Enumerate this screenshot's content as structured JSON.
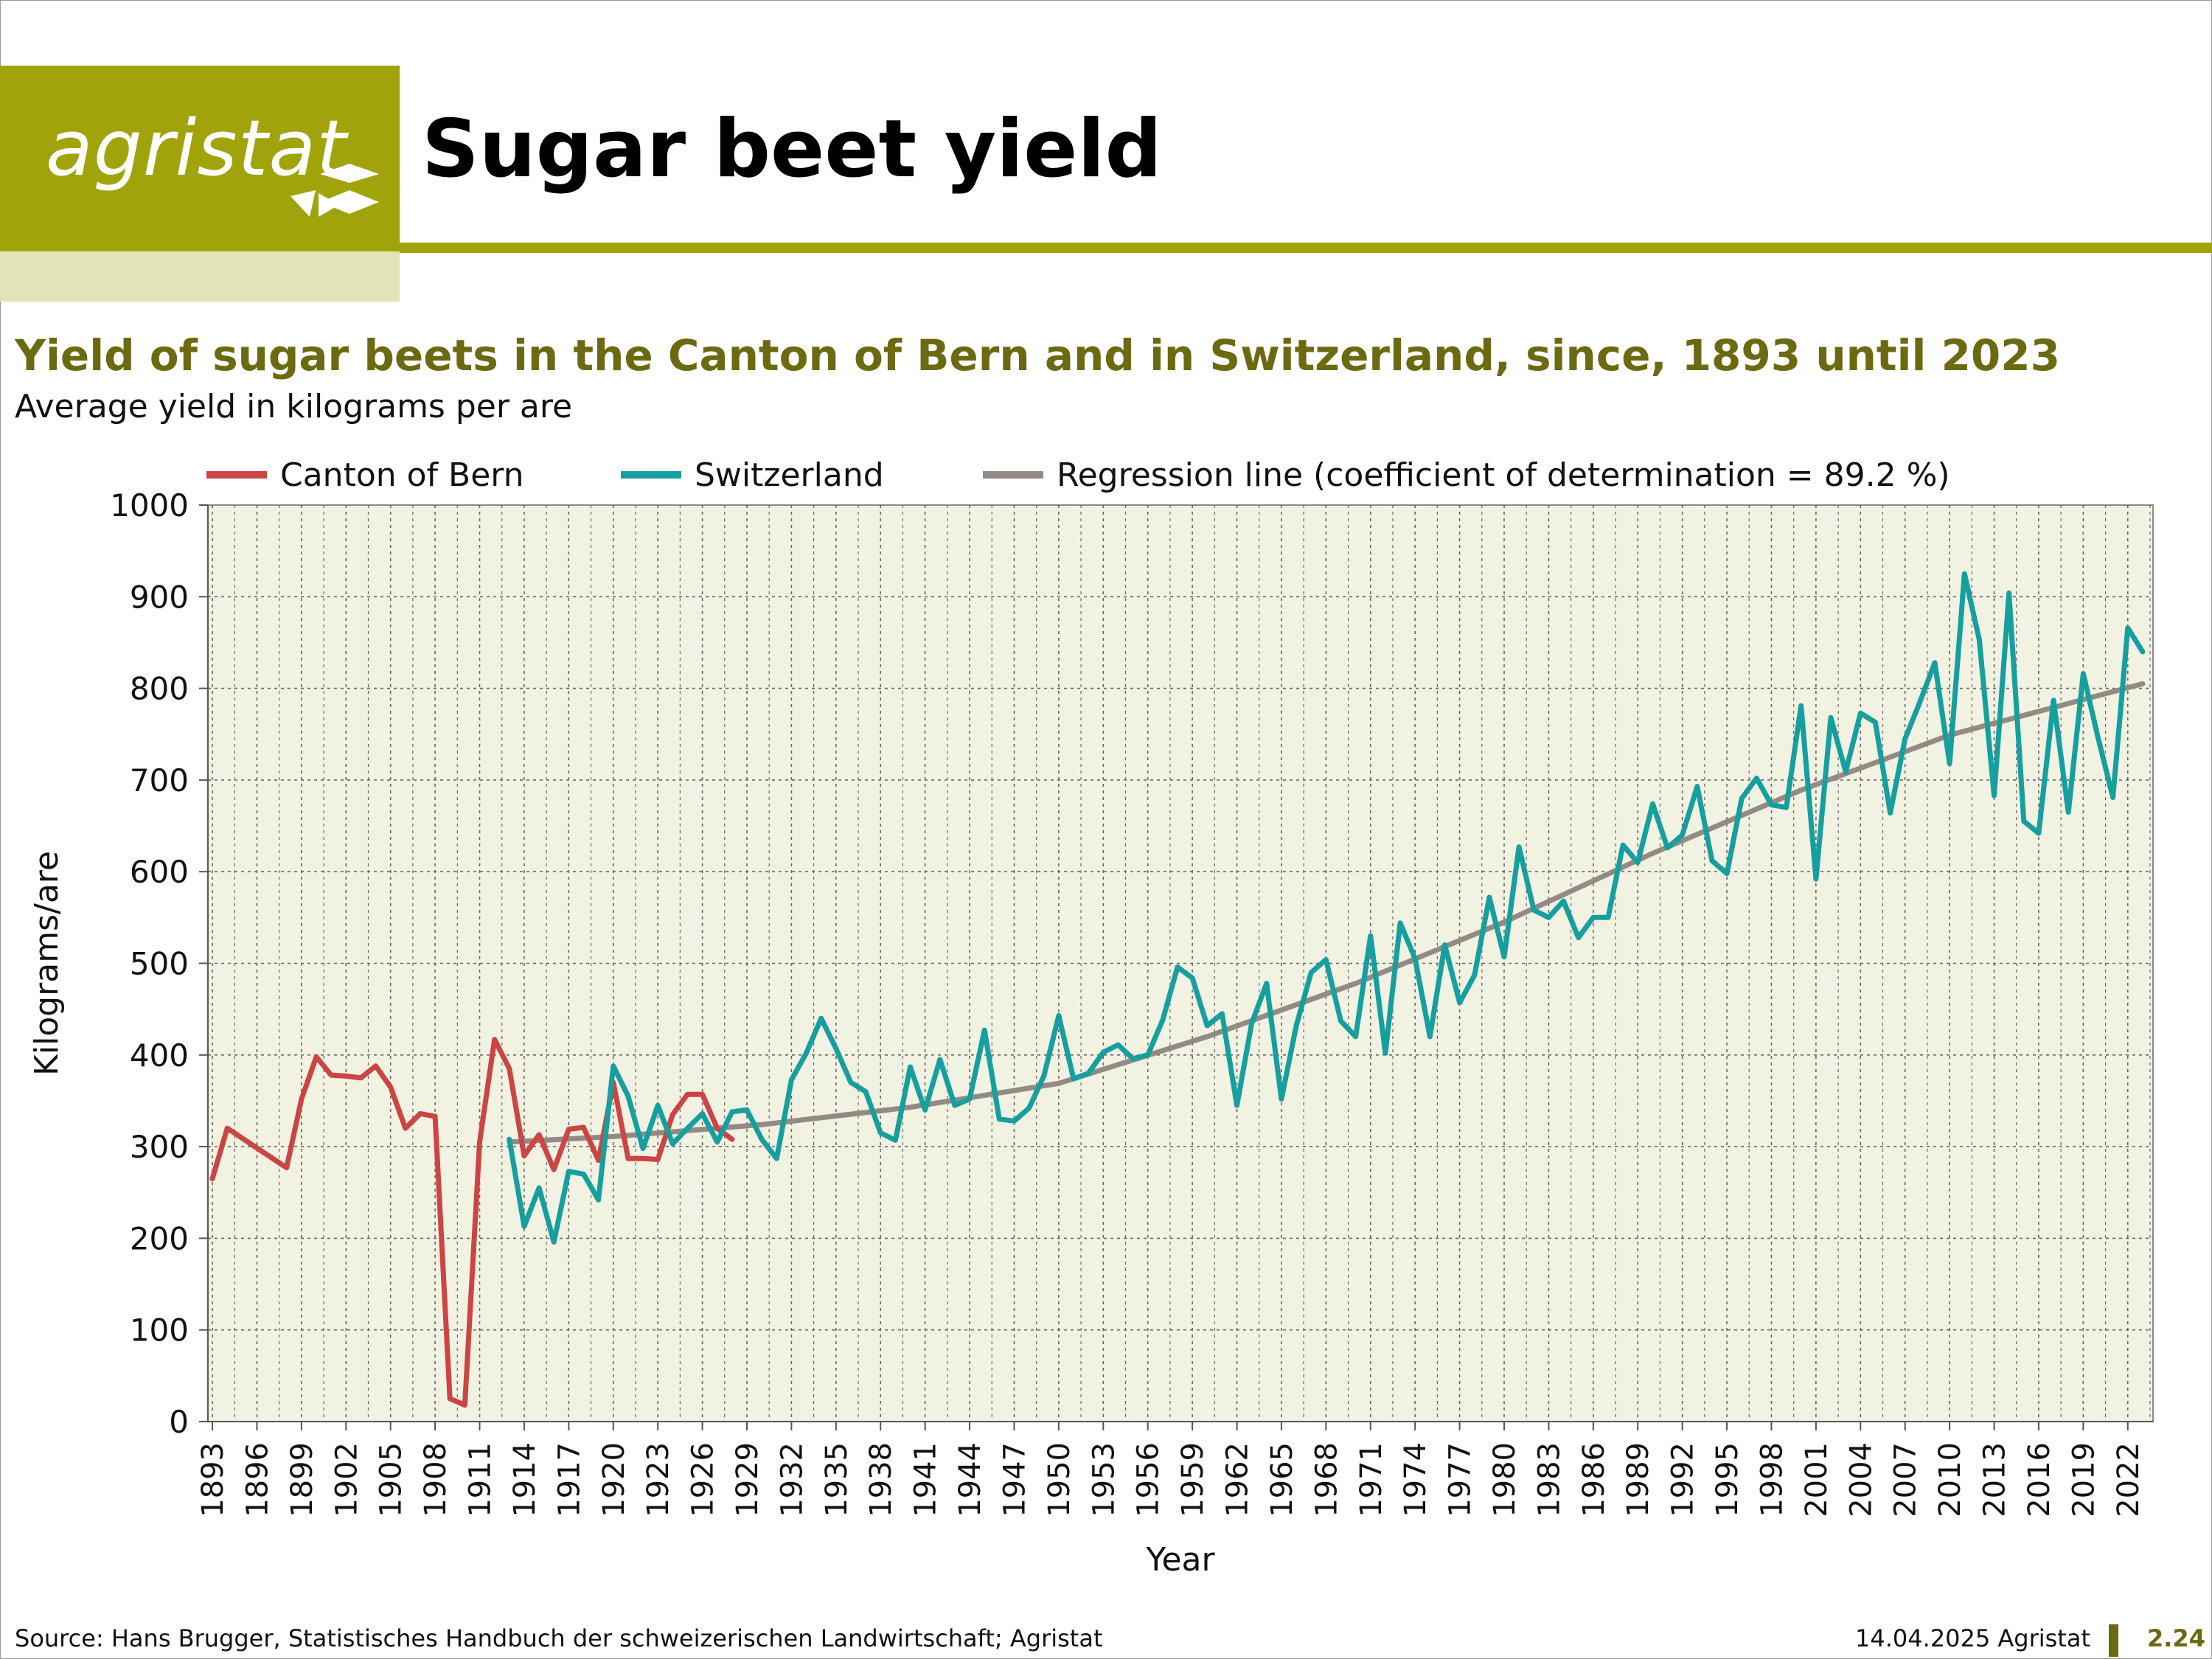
{
  "header": {
    "logo_text": "agristat",
    "page_title": "Sugar beet yield"
  },
  "colors": {
    "brand": "#a0a40a",
    "brand_light": "#e2e4b8",
    "title_olive": "#6b6a10",
    "plot_bg": "#f2f2e2",
    "bern": "#cc4444",
    "switzerland": "#169f9f",
    "regression": "#948a85"
  },
  "chart_data": {
    "type": "line",
    "title": "Yield of sugar beets in the Canton of Bern and in Switzerland, since, 1893 until 2023",
    "subtitle": "Average yield in kilograms per are",
    "xlabel": "Year",
    "ylabel": "Kilograms/are",
    "xlim": [
      1893,
      2023
    ],
    "ylim": [
      0,
      1000
    ],
    "yticks": [
      0,
      100,
      200,
      300,
      400,
      500,
      600,
      700,
      800,
      900,
      1000
    ],
    "xticks": [
      1893,
      1896,
      1899,
      1902,
      1905,
      1908,
      1911,
      1914,
      1917,
      1920,
      1923,
      1926,
      1929,
      1932,
      1935,
      1938,
      1941,
      1944,
      1947,
      1950,
      1953,
      1956,
      1959,
      1962,
      1965,
      1968,
      1971,
      1974,
      1977,
      1980,
      1983,
      1986,
      1989,
      1992,
      1995,
      1998,
      2001,
      2004,
      2007,
      2010,
      2013,
      2016,
      2019,
      2022
    ],
    "grid": true,
    "legend_position": "top",
    "series": [
      {
        "name": "Canton of Bern",
        "x": [
          1893,
          1894,
          1898,
          1899,
          1900,
          1901,
          1902,
          1903,
          1904,
          1905,
          1906,
          1907,
          1908,
          1909,
          1910,
          1911,
          1912,
          1913,
          1914,
          1915,
          1916,
          1917,
          1918,
          1919,
          1920,
          1921,
          1922,
          1923,
          1924,
          1925,
          1926,
          1927,
          1928
        ],
        "values": [
          265,
          320,
          277,
          352,
          398,
          378,
          377,
          375,
          388,
          365,
          320,
          336,
          333,
          25,
          18,
          305,
          417,
          385,
          290,
          313,
          275,
          319,
          321,
          285,
          370,
          287,
          287,
          286,
          335,
          357,
          357,
          320,
          308
        ]
      },
      {
        "name": "Switzerland",
        "x": [
          1913,
          1914,
          1915,
          1916,
          1917,
          1918,
          1919,
          1920,
          1921,
          1922,
          1923,
          1924,
          1925,
          1926,
          1927,
          1928,
          1929,
          1930,
          1931,
          1932,
          1933,
          1934,
          1935,
          1936,
          1937,
          1938,
          1939,
          1940,
          1941,
          1942,
          1943,
          1944,
          1945,
          1946,
          1947,
          1948,
          1949,
          1950,
          1951,
          1952,
          1953,
          1954,
          1955,
          1956,
          1957,
          1958,
          1959,
          1960,
          1961,
          1962,
          1963,
          1964,
          1965,
          1966,
          1967,
          1968,
          1969,
          1970,
          1971,
          1972,
          1973,
          1974,
          1975,
          1976,
          1977,
          1978,
          1979,
          1980,
          1981,
          1982,
          1983,
          1984,
          1985,
          1986,
          1987,
          1988,
          1989,
          1990,
          1991,
          1992,
          1993,
          1994,
          1995,
          1996,
          1997,
          1998,
          1999,
          2000,
          2001,
          2002,
          2003,
          2004,
          2005,
          2006,
          2007,
          2008,
          2009,
          2010,
          2011,
          2012,
          2013,
          2014,
          2015,
          2016,
          2017,
          2018,
          2019,
          2020,
          2021,
          2022,
          2023
        ],
        "values": [
          308,
          213,
          255,
          196,
          273,
          270,
          242,
          388,
          355,
          298,
          345,
          303,
          320,
          336,
          305,
          338,
          340,
          308,
          287,
          373,
          402,
          440,
          407,
          370,
          360,
          315,
          307,
          387,
          340,
          395,
          345,
          352,
          427,
          330,
          328,
          342,
          377,
          443,
          374,
          380,
          403,
          411,
          396,
          400,
          438,
          496,
          484,
          432,
          445,
          345,
          435,
          478,
          352,
          432,
          490,
          504,
          437,
          420,
          530,
          402,
          544,
          505,
          420,
          520,
          457,
          487,
          572,
          507,
          627,
          558,
          550,
          568,
          528,
          550,
          550,
          629,
          610,
          674,
          626,
          640,
          693,
          612,
          598,
          680,
          702,
          673,
          670,
          781,
          592,
          768,
          709,
          773,
          763,
          664,
          745,
          785,
          828,
          718,
          925,
          853,
          683,
          904,
          655,
          642,
          787,
          665,
          816,
          746,
          681,
          866,
          840
        ]
      },
      {
        "name": "Regression line (coefficient of determination = 89.2 %)",
        "x": [
          1913,
          1920,
          1930,
          1940,
          1950,
          1960,
          1970,
          1980,
          1990,
          2000,
          2010,
          2023
        ],
        "values": [
          305,
          311,
          324,
          343,
          369,
          420,
          478,
          545,
          620,
          689,
          749,
          805
        ]
      }
    ]
  },
  "footer": {
    "source": "Source: Hans Brugger, Statistisches Handbuch der schweizerischen Landwirtschaft; Agristat",
    "date": "14.04.2025 Agristat",
    "page_number": "2.24"
  }
}
